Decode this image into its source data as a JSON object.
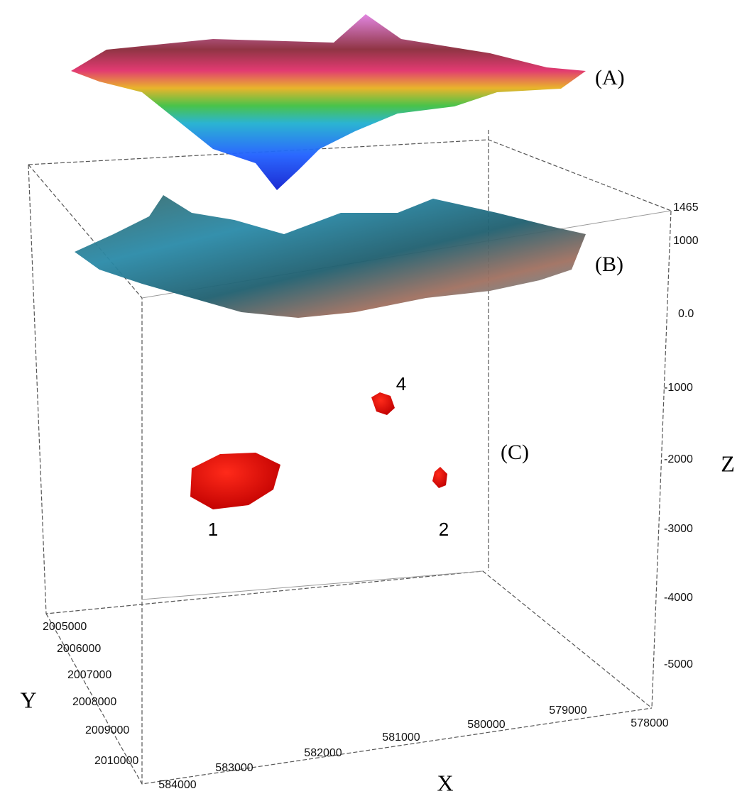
{
  "surfaces": [
    {
      "label": "(A)"
    },
    {
      "label": "(B)"
    },
    {
      "label": "(C)"
    }
  ],
  "bodies": [
    {
      "label": "1"
    },
    {
      "label": "4"
    },
    {
      "label": "2"
    }
  ],
  "axes": {
    "x": {
      "title": "X",
      "ticks": [
        "584000",
        "583000",
        "582000",
        "581000",
        "580000",
        "579000",
        "578000"
      ]
    },
    "y": {
      "title": "Y",
      "ticks": [
        "2005000",
        "2006000",
        "2007000",
        "2008000",
        "2009000",
        "2010000"
      ]
    },
    "z": {
      "title": "Z",
      "ticks": [
        "1465",
        "1000",
        "0.0",
        "-1000",
        "-2000",
        "-3000",
        "-4000",
        "-5000"
      ]
    }
  }
}
